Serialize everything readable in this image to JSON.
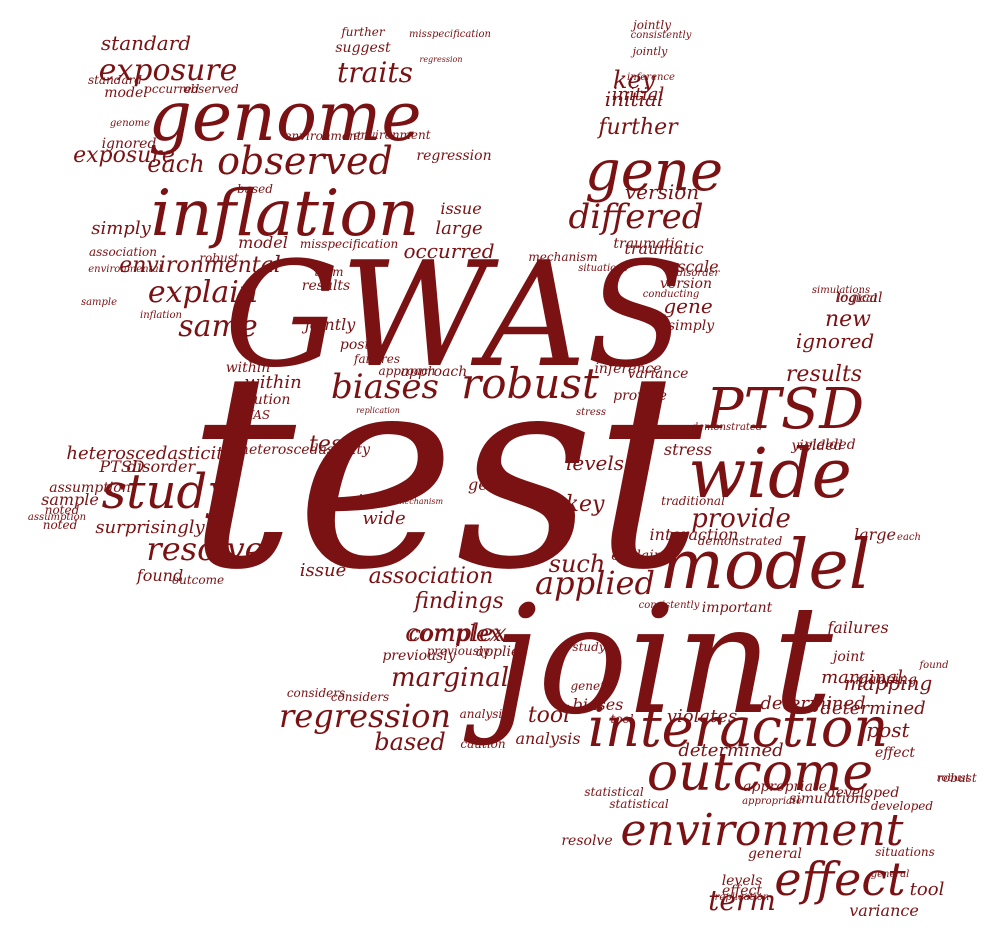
{
  "color": "#7a1214",
  "words": [
    "test",
    "joint",
    "GWAS",
    "model",
    "wide",
    "PTSD",
    "inflation",
    "genome",
    "gene",
    "interaction",
    "outcome",
    "environment",
    "effect",
    "study",
    "robust",
    "observed",
    "biases",
    "differed",
    "exposure",
    "traits",
    "resolve",
    "applied",
    "explain",
    "same",
    "term",
    "regression",
    "association",
    "such",
    "findings",
    "complex",
    "marginal",
    "provide",
    "tool",
    "based",
    "mapping",
    "post",
    "determined",
    "results",
    "new",
    "ignored",
    "environmental",
    "occurred",
    "each",
    "key",
    "initial",
    "further",
    "version",
    "traumatic",
    "standard",
    "suggest",
    "further",
    "jointly",
    "simply",
    "large",
    "issue",
    "assumption",
    "robust",
    "based",
    "heteroscedasticity",
    "levels",
    "stress",
    "within",
    "caution",
    "GWAS",
    "analyses",
    "PTSD",
    "disorder",
    "sample",
    "noted",
    "surprisingly",
    "found",
    "outcome",
    "issue",
    "genetic",
    "key",
    "wide",
    "traits",
    "test",
    "inference",
    "variance",
    "simulations",
    "developed",
    "situations",
    "general",
    "failures",
    "joint",
    "logical",
    "found",
    "effect",
    "robust",
    "important",
    "consistently",
    "statistical",
    "appropriate",
    "violates",
    "biases",
    "genetic",
    "determined",
    "considers",
    "previously",
    "applied",
    "study",
    "demonstrated",
    "yielded",
    "provide",
    "explain",
    "interaction",
    "traditional",
    "mechanism",
    "replication",
    "scale",
    "environment",
    "model",
    "standard",
    "genome",
    "gene",
    "version",
    "simply",
    "conducting",
    "disorder",
    "situations",
    "misspecification",
    "regression",
    "mechanism",
    "approach",
    "post",
    "failures",
    "jointly",
    "results",
    "term",
    "model",
    "inflation",
    "association",
    "environmental",
    "exposure",
    "sample",
    "assumption",
    "noted",
    "ignored",
    "occurred",
    "observed",
    "determined",
    "consistently",
    "inference",
    "jointly",
    "misspecification",
    "regression",
    "environment",
    "simulations",
    "logical",
    "marginal",
    "general",
    "yielded",
    "stress",
    "demonstrated",
    "each",
    "appropriate",
    "large",
    "initial",
    "within",
    "resolve",
    "tool",
    "effect",
    "levels",
    "variance",
    "statistical",
    "developed",
    "robust",
    "mapping",
    "replication",
    "analysis",
    "caution",
    "heteroscedasticity",
    "complex",
    "previously",
    "considers",
    "tool",
    "analysis",
    "approach",
    "traumatic"
  ]
}
